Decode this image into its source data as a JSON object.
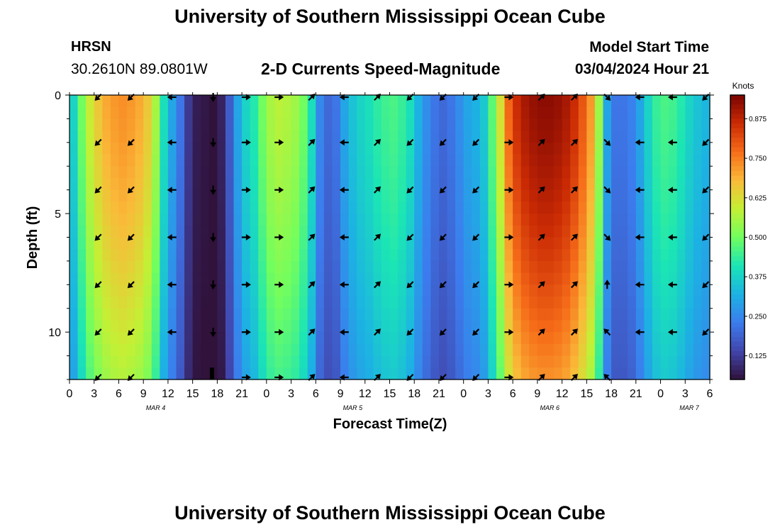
{
  "header": {
    "title": "University of Southern Mississippi Ocean Cube",
    "station": "HRSN",
    "coordinates": "30.2610N  89.0801W",
    "subtitle": "2-D Currents Speed-Magnitude",
    "model_label": "Model Start Time",
    "model_time": "03/04/2024 Hour 21"
  },
  "footer": {
    "title": "University of Southern Mississippi Ocean Cube"
  },
  "chart_data": {
    "type": "heatmap",
    "xlabel": "Forecast Time(Z)",
    "ylabel": "Depth (ft)",
    "x_ticks": [
      "0",
      "3",
      "6",
      "9",
      "12",
      "15",
      "18",
      "21",
      "0",
      "3",
      "6",
      "9",
      "12",
      "15",
      "18",
      "21",
      "0",
      "3",
      "6",
      "9",
      "12",
      "15",
      "18",
      "21",
      "0",
      "3",
      "6"
    ],
    "x_range_hours": [
      0,
      78
    ],
    "date_labels": [
      {
        "label": "MAR 4",
        "hour": 10.5
      },
      {
        "label": "MAR 5",
        "hour": 34.5
      },
      {
        "label": "MAR 6",
        "hour": 58.5
      },
      {
        "label": "MAR 7",
        "hour": 75.5
      }
    ],
    "y_ticks": [
      "0",
      "5",
      "10"
    ],
    "y_tick_values": [
      0,
      5,
      10
    ],
    "y_range_ft": [
      0,
      12
    ],
    "colorbar": {
      "title": "Knots",
      "range": [
        0.05,
        0.95
      ],
      "labels": [
        "0.875",
        "0.750",
        "0.625",
        "0.500",
        "0.375",
        "0.250",
        "0.125"
      ],
      "values": [
        0.875,
        0.75,
        0.625,
        0.5,
        0.375,
        0.25,
        0.125
      ]
    },
    "speed_profile": {
      "hours": [
        0,
        1,
        2,
        3,
        4,
        5,
        6,
        7,
        8,
        9,
        10,
        11,
        12,
        13,
        14,
        15,
        16,
        17,
        18,
        19,
        20,
        21,
        22,
        23,
        24,
        25,
        26,
        27,
        28,
        29,
        30,
        31,
        32,
        33,
        34,
        35,
        36,
        37,
        38,
        39,
        40,
        41,
        42,
        43,
        44,
        45,
        46,
        47,
        48,
        49,
        50,
        51,
        52,
        53,
        54,
        55,
        56,
        57,
        58,
        59,
        60,
        61,
        62,
        63,
        64,
        65,
        66,
        67,
        68,
        69,
        70,
        71,
        72,
        73,
        74,
        75,
        76,
        77,
        78
      ],
      "surface_knots": [
        0.38,
        0.5,
        0.6,
        0.66,
        0.7,
        0.72,
        0.73,
        0.72,
        0.7,
        0.66,
        0.56,
        0.4,
        0.3,
        0.22,
        0.12,
        0.07,
        0.06,
        0.05,
        0.08,
        0.18,
        0.3,
        0.38,
        0.42,
        0.5,
        0.56,
        0.58,
        0.57,
        0.55,
        0.5,
        0.4,
        0.25,
        0.2,
        0.22,
        0.3,
        0.35,
        0.38,
        0.4,
        0.43,
        0.45,
        0.46,
        0.44,
        0.4,
        0.32,
        0.26,
        0.22,
        0.2,
        0.22,
        0.26,
        0.3,
        0.32,
        0.36,
        0.48,
        0.62,
        0.78,
        0.86,
        0.9,
        0.92,
        0.93,
        0.93,
        0.92,
        0.9,
        0.86,
        0.8,
        0.72,
        0.55,
        0.3,
        0.22,
        0.22,
        0.24,
        0.3,
        0.38,
        0.44,
        0.46,
        0.45,
        0.42,
        0.38,
        0.35,
        0.33,
        0.33
      ]
    },
    "depth_dampening": "speeds decrease toward the bottom (12 ft)",
    "arrow_depths_ft": [
      0,
      2,
      4,
      6,
      8,
      10,
      12
    ],
    "arrow_columns": [
      {
        "hour": 3.5,
        "dir": "sw",
        "depths_ft": [
          0,
          2,
          4,
          6,
          8,
          10,
          12
        ]
      },
      {
        "hour": 7.5,
        "dir": "sw",
        "depths_ft": [
          0,
          2,
          4,
          6,
          8,
          10,
          12
        ]
      },
      {
        "hour": 12.5,
        "dir": "w",
        "depths_ft": [
          0,
          2,
          4,
          6,
          8,
          10
        ]
      },
      {
        "hour": 17.5,
        "dir": "s",
        "depths_ft": [
          0,
          2,
          4,
          6,
          8,
          10
        ]
      },
      {
        "hour": 21.5,
        "dir": "e",
        "depths_ft": [
          0,
          2,
          4,
          6,
          8,
          10,
          12
        ]
      },
      {
        "hour": 25.5,
        "dir": "e",
        "depths_ft": [
          0,
          2,
          4,
          6,
          8,
          10,
          12
        ]
      },
      {
        "hour": 29.5,
        "dir": "ne",
        "depths_ft": [
          0,
          2,
          4,
          6,
          8,
          10,
          12
        ]
      },
      {
        "hour": 33.5,
        "dir": "w",
        "depths_ft": [
          0,
          2,
          4,
          6,
          8,
          10,
          12
        ]
      },
      {
        "hour": 37.5,
        "dir": "ne",
        "depths_ft": [
          0,
          2,
          4,
          6,
          8,
          10,
          12
        ]
      },
      {
        "hour": 41.5,
        "dir": "sw",
        "depths_ft": [
          0,
          2,
          4,
          6,
          8,
          10,
          12
        ]
      },
      {
        "hour": 45.5,
        "dir": "sw",
        "depths_ft": [
          0,
          2,
          4,
          6,
          8,
          10,
          12
        ]
      },
      {
        "hour": 49.5,
        "dir": "sw",
        "depths_ft": [
          0,
          2,
          4,
          6,
          8,
          10,
          12
        ]
      },
      {
        "hour": 53.5,
        "dir": "e",
        "depths_ft": [
          0,
          2,
          4,
          6,
          8,
          10,
          12
        ]
      },
      {
        "hour": 57.5,
        "dir": "ne",
        "depths_ft": [
          0,
          2,
          4,
          6,
          8,
          10,
          12
        ]
      },
      {
        "hour": 61.5,
        "dir": "ne",
        "depths_ft": [
          0,
          2,
          4,
          6,
          8,
          10,
          12
        ]
      },
      {
        "hour": 65.5,
        "dir": "se",
        "depths_ft": [
          0,
          2,
          4,
          6
        ]
      },
      {
        "hour": 65.5,
        "dir": "n",
        "depths_ft": [
          8
        ]
      },
      {
        "hour": 65.5,
        "dir": "nw",
        "depths_ft": [
          10,
          12
        ]
      },
      {
        "hour": 69.5,
        "dir": "w",
        "depths_ft": [
          0,
          2,
          4,
          6,
          8,
          10
        ]
      },
      {
        "hour": 73.5,
        "dir": "w",
        "depths_ft": [
          0,
          2,
          4,
          6,
          8,
          10
        ]
      },
      {
        "hour": 77.5,
        "dir": "sw",
        "depths_ft": [
          0,
          2,
          4,
          6,
          8,
          10
        ]
      }
    ]
  }
}
